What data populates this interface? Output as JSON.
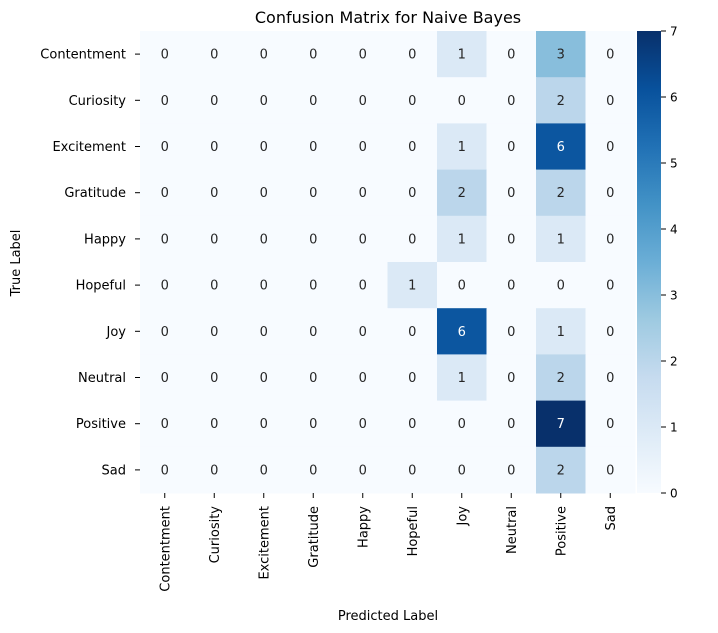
{
  "chart_data": {
    "type": "heatmap",
    "title": "Confusion Matrix for Naive Bayes",
    "xlabel": "Predicted Label",
    "ylabel": "True Label",
    "row_labels": [
      "Contentment",
      "Curiosity",
      "Excitement",
      "Gratitude",
      "Happy",
      "Hopeful",
      "Joy",
      "Neutral",
      "Positive",
      "Sad"
    ],
    "col_labels": [
      "Contentment",
      "Curiosity",
      "Excitement",
      "Gratitude",
      "Happy",
      "Hopeful",
      "Joy",
      "Neutral",
      "Positive",
      "Sad"
    ],
    "values": [
      [
        0,
        0,
        0,
        0,
        0,
        0,
        1,
        0,
        3,
        0
      ],
      [
        0,
        0,
        0,
        0,
        0,
        0,
        0,
        0,
        2,
        0
      ],
      [
        0,
        0,
        0,
        0,
        0,
        0,
        1,
        0,
        6,
        0
      ],
      [
        0,
        0,
        0,
        0,
        0,
        0,
        2,
        0,
        2,
        0
      ],
      [
        0,
        0,
        0,
        0,
        0,
        0,
        1,
        0,
        1,
        0
      ],
      [
        0,
        0,
        0,
        0,
        0,
        1,
        0,
        0,
        0,
        0
      ],
      [
        0,
        0,
        0,
        0,
        0,
        0,
        6,
        0,
        1,
        0
      ],
      [
        0,
        0,
        0,
        0,
        0,
        0,
        1,
        0,
        2,
        0
      ],
      [
        0,
        0,
        0,
        0,
        0,
        0,
        0,
        0,
        7,
        0
      ],
      [
        0,
        0,
        0,
        0,
        0,
        0,
        0,
        0,
        2,
        0
      ]
    ],
    "colorbar": {
      "min": 0,
      "max": 7,
      "ticks": [
        0,
        1,
        2,
        3,
        4,
        5,
        6,
        7
      ]
    },
    "colormap": "Blues"
  }
}
